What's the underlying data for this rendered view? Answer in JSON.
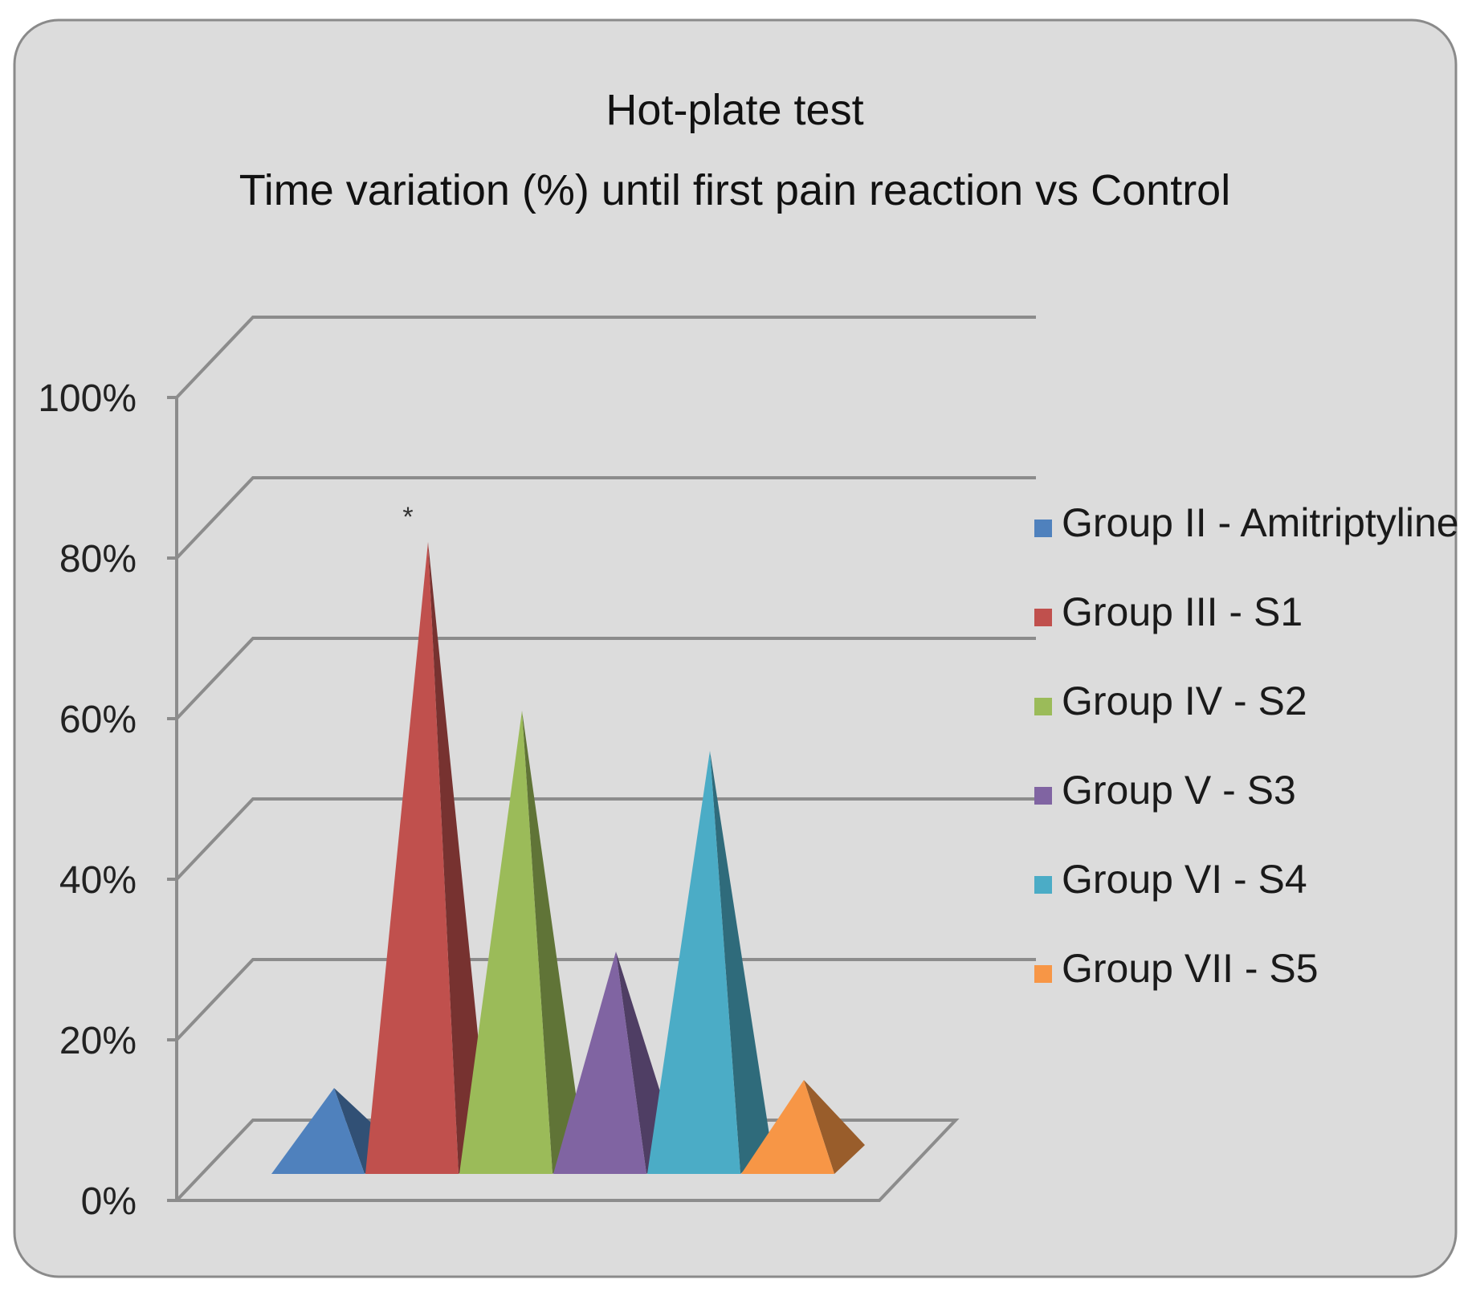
{
  "chart_data": {
    "type": "bar",
    "title": "Hot-plate test",
    "subtitle": "Time variation (%) until first pain reaction vs Control",
    "xlabel": "",
    "ylabel": "",
    "ylim": [
      0,
      100
    ],
    "yticks": [
      0,
      20,
      40,
      60,
      80,
      100
    ],
    "ytick_labels": [
      "0%",
      "20%",
      "40%",
      "60%",
      "80%",
      "100%"
    ],
    "grid": true,
    "legend_position": "right",
    "series": [
      {
        "name": "Group II - Amitriptyline",
        "value": 13,
        "color": "#4F81BD"
      },
      {
        "name": "Group III - S1",
        "value": 81,
        "color": "#C0504D"
      },
      {
        "name": "Group IV - S2",
        "value": 60,
        "color": "#9BBB59"
      },
      {
        "name": "Group V - S3",
        "value": 30,
        "color": "#8064A2"
      },
      {
        "name": "Group VI - S4",
        "value": 55,
        "color": "#4BACC6"
      },
      {
        "name": "Group VII - S5",
        "value": 14,
        "color": "#F79646"
      }
    ],
    "annotations": [
      {
        "text": "*",
        "series": "Group III - S1"
      }
    ]
  }
}
